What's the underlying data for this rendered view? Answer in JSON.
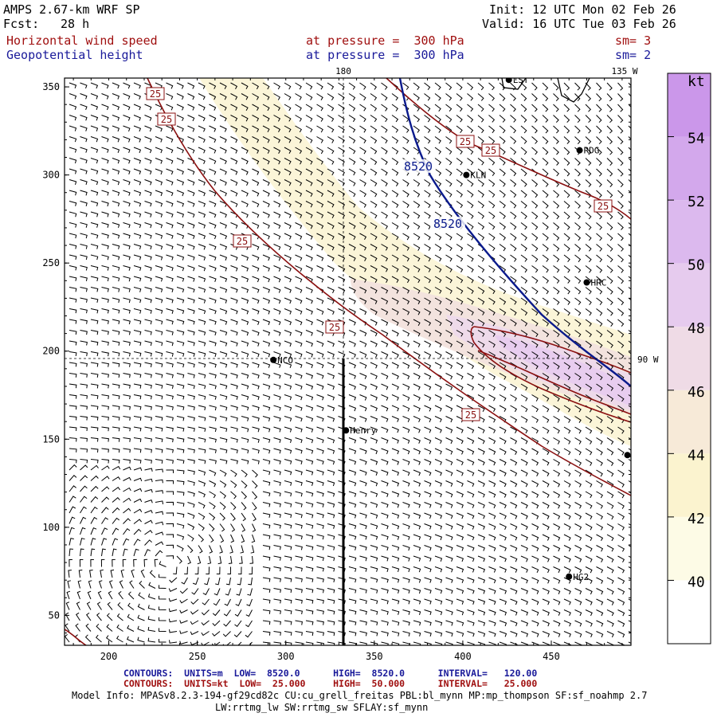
{
  "header": {
    "model": "AMPS 2.67-km WRF SP",
    "fcst_label": "Fcst:",
    "fcst_value": "28 h",
    "init": "Init: 12 UTC Mon 02 Feb 26",
    "valid": "Valid: 16 UTC Tue 03 Feb 26",
    "field1_name": "Horizontal wind speed",
    "field1_level": "at pressure =  300 hPa",
    "field1_sm": "sm= 3",
    "field2_name": "Geopotential height",
    "field2_level": "at pressure =  300 hPa",
    "field2_sm": "sm= 2",
    "colors": {
      "field1": "#a01010",
      "field2": "#1a1a9a"
    }
  },
  "map": {
    "x_ticks": [
      "200",
      "250",
      "300",
      "350",
      "400",
      "450"
    ],
    "y_ticks": [
      "350",
      "300",
      "250",
      "200",
      "150",
      "100",
      "50"
    ],
    "x_range": [
      175,
      495
    ],
    "y_range": [
      33,
      355
    ],
    "meridian_labels": [
      {
        "text": "180",
        "lon": "180"
      },
      {
        "text": "135 W",
        "lon": "135W"
      },
      {
        "text": "90 W",
        "lon": "90W"
      }
    ],
    "stations": [
      {
        "name": "LST",
        "x": 426,
        "y": 354
      },
      {
        "name": "RDG",
        "x": 466,
        "y": 314
      },
      {
        "name": "KLN",
        "x": 402,
        "y": 300
      },
      {
        "name": "HRC",
        "x": 470,
        "y": 239
      },
      {
        "name": "NCO",
        "x": 293,
        "y": 195
      },
      {
        "name": "Henry",
        "x": 334,
        "y": 155
      },
      {
        "name": "",
        "x": 493,
        "y": 141
      },
      {
        "name": "HG2",
        "x": 460,
        "y": 72
      }
    ],
    "height_contour_labels": [
      "8520",
      "8520"
    ],
    "speed_contour_labels": [
      "25",
      "25",
      "25",
      "25",
      "25",
      "25",
      "25",
      "25"
    ]
  },
  "colorbar": {
    "unit": "kt",
    "levels": [
      "40",
      "42",
      "44",
      "46",
      "48",
      "50",
      "52",
      "54"
    ],
    "colors": [
      "#ffffff",
      "#fdfbe6",
      "#fbf3cf",
      "#f7ead8",
      "#efdbe6",
      "#e6cbee",
      "#dcb9ee",
      "#d3a8ec",
      "#cb97ea"
    ]
  },
  "footer": {
    "contours1": "CONTOURS:  UNITS=m  LOW=  8520.0      HIGH=  8520.0      INTERVAL=   120.00",
    "contours2": "CONTOURS:  UNITS=kt  LOW=  25.000     HIGH=  50.000      INTERVAL=   25.000",
    "model_info1": "Model Info: MPASv8.2.3-194-gf29cd82c CU:cu_grell_freitas PBL:bl_mynn MP:mp_thompson SF:sf_noahmp 2.7",
    "model_info2": "LW:rrtmg_lw SW:rrtmg_sw SFLAY:sf_mynn"
  }
}
